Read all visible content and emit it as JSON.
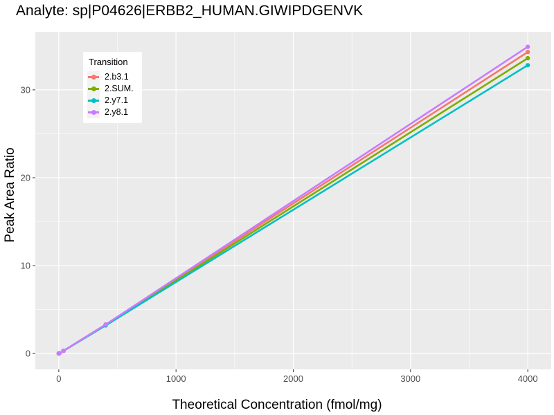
{
  "chart_data": {
    "type": "line",
    "title": "Analyte: sp|P04626|ERBB2_HUMAN.GIWIPDGENVK",
    "xlabel": "Theoretical Concentration (fmol/mg)",
    "ylabel": "Peak Area Ratio",
    "xlim": [
      -200,
      4200
    ],
    "ylim": [
      -1.8,
      36.6
    ],
    "x_ticks": [
      0,
      1000,
      2000,
      3000,
      4000
    ],
    "y_ticks": [
      0,
      10,
      20,
      30
    ],
    "grid": true,
    "legend": {
      "title": "Transition",
      "position": "top-left"
    },
    "series": [
      {
        "name": "2.b3.1",
        "color": "#F8766D",
        "x": [
          0,
          4,
          40,
          400,
          4000
        ],
        "y": [
          0.0,
          0.03,
          0.3,
          3.3,
          34.3
        ]
      },
      {
        "name": "2.SUM.",
        "color": "#7CAE00",
        "x": [
          0,
          4,
          40,
          400,
          4000
        ],
        "y": [
          0.0,
          0.03,
          0.3,
          3.25,
          33.6
        ]
      },
      {
        "name": "2.y7.1",
        "color": "#00BFC4",
        "x": [
          0,
          4,
          40,
          400,
          4000
        ],
        "y": [
          0.0,
          0.03,
          0.3,
          3.2,
          32.8
        ]
      },
      {
        "name": "2.y8.1",
        "color": "#C77CFF",
        "x": [
          0,
          4,
          40,
          400,
          4000
        ],
        "y": [
          0.0,
          0.03,
          0.3,
          3.3,
          34.9
        ]
      }
    ]
  }
}
